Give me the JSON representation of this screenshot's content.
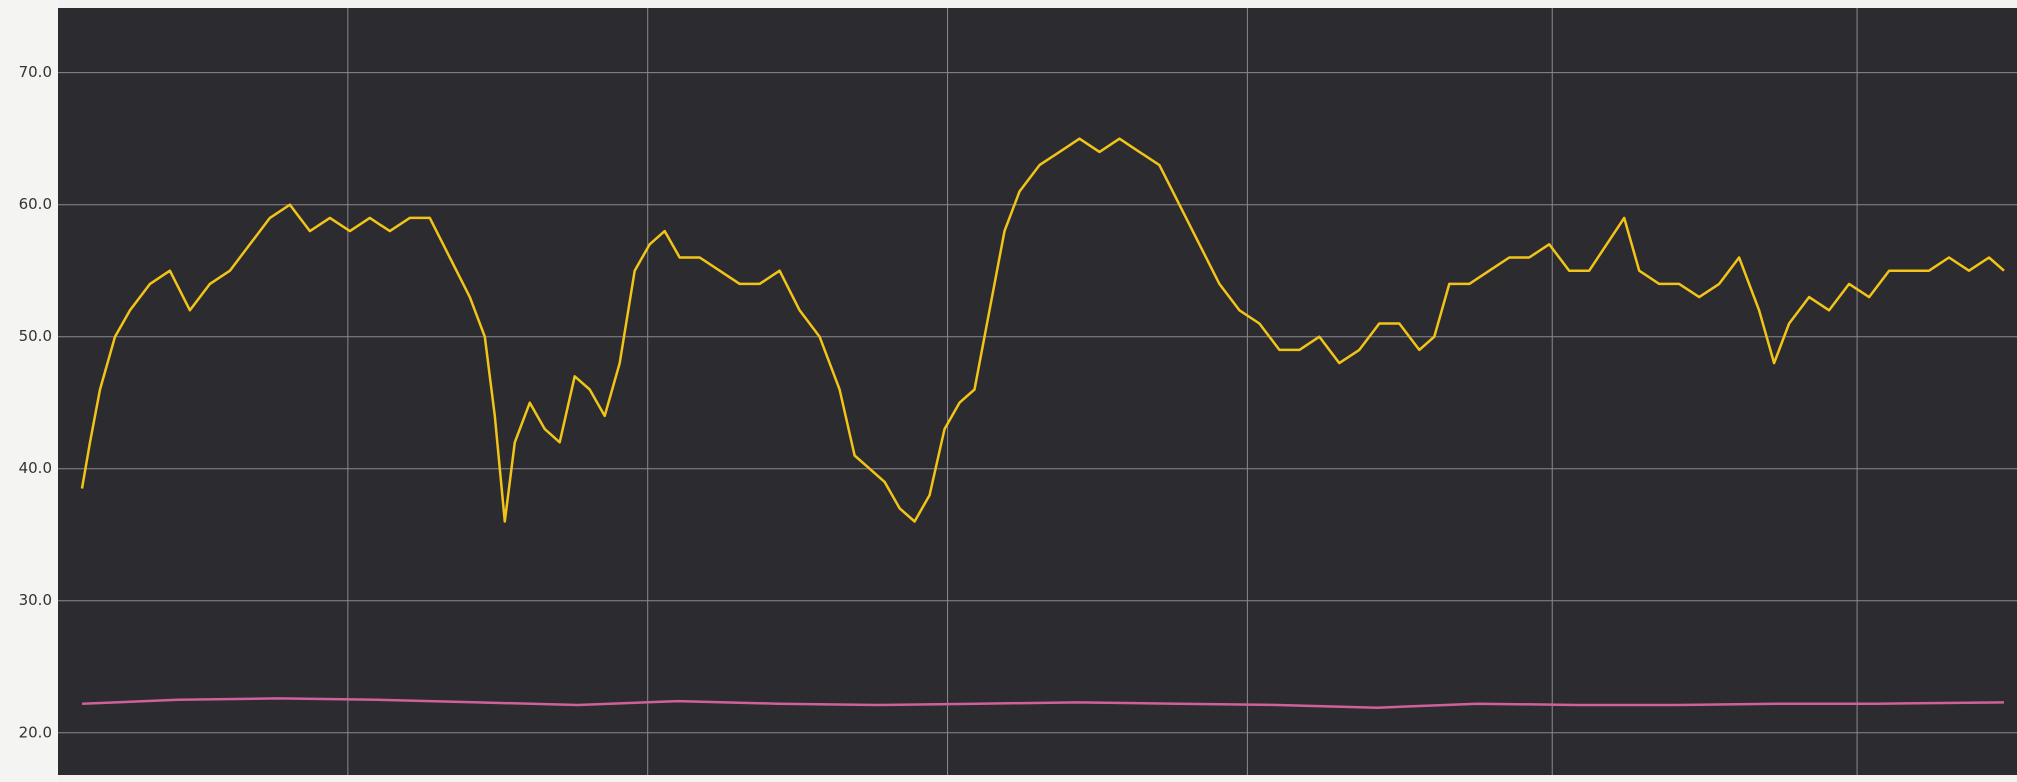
{
  "chart_data": {
    "type": "line",
    "xlim": [
      0,
      196
    ],
    "xticks": [
      29,
      59,
      89,
      119,
      149.5,
      180
    ],
    "ylim": [
      16.8,
      74.9
    ],
    "yticks": [
      {
        "value": 20,
        "label": "20.0"
      },
      {
        "value": 30,
        "label": "30.0"
      },
      {
        "value": 40,
        "label": "40.0"
      },
      {
        "value": 50,
        "label": "50.0"
      },
      {
        "value": 60,
        "label": "60.0"
      },
      {
        "value": 70,
        "label": "70.0"
      }
    ],
    "grid": true,
    "series": [
      {
        "color": "#f2c418",
        "x": [
          2.4,
          3.2,
          4.2,
          5.7,
          7.2,
          9.2,
          11.2,
          13.2,
          15.2,
          17.2,
          19.2,
          21.2,
          23.2,
          25.2,
          27.2,
          29.2,
          31.2,
          33.2,
          35.2,
          37.2,
          39.2,
          41.2,
          42.7,
          43.7,
          44.7,
          45.7,
          47.2,
          48.7,
          50.2,
          51.7,
          53.2,
          54.7,
          56.2,
          57.7,
          59.2,
          60.7,
          62.2,
          64.2,
          66.2,
          68.2,
          70.2,
          72.2,
          74.2,
          76.2,
          78.2,
          79.7,
          81.2,
          82.7,
          84.2,
          85.7,
          87.2,
          88.7,
          90.2,
          91.7,
          93.2,
          94.7,
          96.2,
          98.2,
          100.2,
          102.2,
          104.2,
          106.2,
          108.2,
          110.2,
          112.2,
          114.2,
          116.2,
          118.2,
          120.2,
          122.2,
          124.2,
          126.2,
          128.2,
          130.2,
          132.2,
          134.2,
          136.2,
          137.7,
          139.2,
          141.2,
          143.2,
          145.2,
          147.2,
          149.2,
          151.2,
          153.2,
          156.7,
          158.2,
          160.2,
          162.2,
          164.2,
          166.2,
          168.2,
          170.2,
          171.7,
          173.2,
          175.2,
          177.2,
          179.2,
          181.2,
          183.2,
          185.2,
          187.2,
          189.2,
          191.2,
          193.2,
          194.7
        ],
        "values": [
          38.5,
          42,
          46,
          50,
          52,
          54,
          55,
          52,
          54,
          55,
          57,
          59,
          60,
          58,
          59,
          58,
          59,
          58,
          59,
          59,
          56,
          53,
          50,
          44,
          36,
          42,
          45,
          43,
          42,
          47,
          46,
          44,
          48,
          55,
          57,
          58,
          56,
          56,
          55,
          54,
          54,
          55,
          52,
          50,
          46,
          41,
          40,
          39,
          37,
          36,
          38,
          43,
          45,
          46,
          52,
          58,
          61,
          63,
          64,
          65,
          64,
          65,
          64,
          63,
          60,
          57,
          54,
          52,
          51,
          49,
          49,
          50,
          48,
          49,
          51,
          51,
          49,
          50,
          54,
          54,
          55,
          56,
          56,
          57,
          55,
          55,
          59,
          55,
          54,
          54,
          53,
          54,
          56,
          52,
          48,
          51,
          53,
          52,
          54,
          53,
          55,
          55,
          55,
          56,
          55,
          56,
          55
        ]
      },
      {
        "color": "#d0609a",
        "x": [
          2.4,
          12,
          22,
          32,
          42,
          52,
          62,
          72,
          82,
          92,
          102,
          112,
          122,
          132,
          142,
          152,
          162,
          172,
          182,
          194.7
        ],
        "values": [
          22.2,
          22.5,
          22.6,
          22.5,
          22.3,
          22.1,
          22.4,
          22.2,
          22.1,
          22.2,
          22.3,
          22.2,
          22.1,
          21.9,
          22.2,
          22.1,
          22.1,
          22.2,
          22.2,
          22.3
        ]
      }
    ]
  }
}
